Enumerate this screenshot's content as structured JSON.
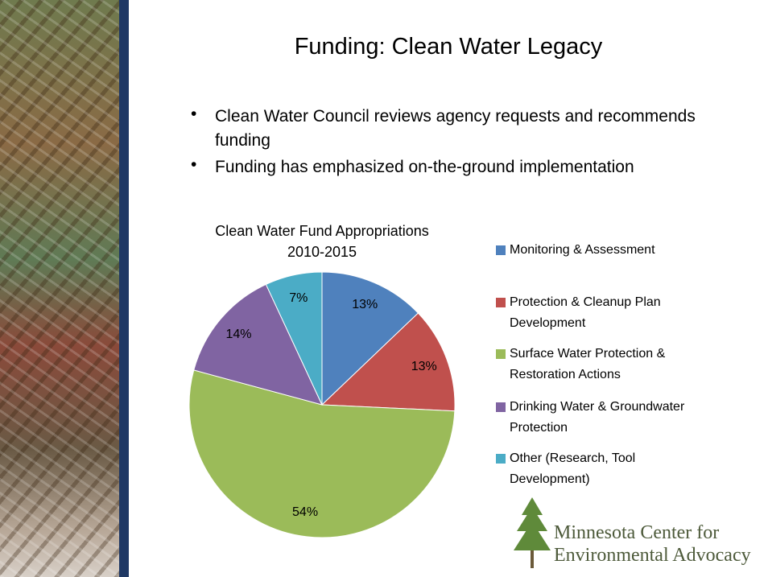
{
  "slide": {
    "title": "Funding: Clean Water Legacy",
    "bullets": [
      "Clean Water Council reviews agency requests and recommends funding",
      "Funding has emphasized on-the-ground implementation"
    ],
    "logo": {
      "line1": "Minnesota Center for",
      "line2": "Environmental Advocacy"
    }
  },
  "chart_data": {
    "type": "pie",
    "title": "Clean Water Fund Appropriations",
    "subtitle": "2010-2015",
    "categories": [
      "Monitoring & Assessment",
      "Protection & Cleanup Plan Development",
      "Surface Water Protection & Restoration Actions",
      "Drinking Water & Groundwater Protection",
      "Other (Research, Tool Development)"
    ],
    "values": [
      13,
      13,
      54,
      14,
      7
    ],
    "value_labels": [
      "13%",
      "13%",
      "54%",
      "14%",
      "7%"
    ],
    "colors": [
      "#4f81bd",
      "#c0504d",
      "#9bbb59",
      "#8064a2",
      "#4bacc6"
    ],
    "legend": "right"
  }
}
